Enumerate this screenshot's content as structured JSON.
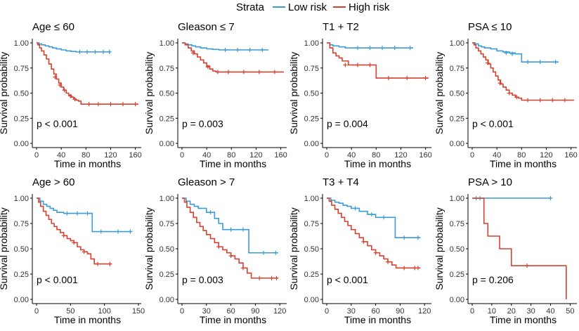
{
  "legend": {
    "title": "Strata",
    "items": [
      {
        "label": "Low risk",
        "color": "#3a9bd6"
      },
      {
        "label": "High risk",
        "color": "#d9402f"
      }
    ]
  },
  "chart_data": [
    {
      "type": "line",
      "title": "Age ≤ 60",
      "xlabel": "Time in months",
      "ylabel": "Survival probability",
      "xlim": [
        0,
        165
      ],
      "ylim": [
        0,
        1
      ],
      "xticks": [
        0,
        40,
        80,
        120,
        160
      ],
      "yticks": [
        0,
        0.25,
        0.5,
        0.75,
        1.0
      ],
      "pvalue": "p < 0.001",
      "series": [
        {
          "name": "Low risk",
          "x": [
            0,
            4,
            8,
            14,
            20,
            26,
            32,
            40,
            48,
            56,
            64,
            120
          ],
          "y": [
            1.0,
            0.99,
            0.98,
            0.97,
            0.96,
            0.95,
            0.94,
            0.93,
            0.92,
            0.915,
            0.91,
            0.91
          ],
          "censors": [
            [
              70,
              0.91
            ],
            [
              82,
              0.91
            ],
            [
              95,
              0.91
            ],
            [
              108,
              0.91
            ],
            [
              118,
              0.91
            ]
          ]
        },
        {
          "name": "High risk",
          "x": [
            0,
            2,
            5,
            8,
            12,
            16,
            20,
            24,
            28,
            32,
            36,
            40,
            44,
            48,
            52,
            56,
            60,
            64,
            68,
            72,
            165
          ],
          "y": [
            1.0,
            0.98,
            0.95,
            0.92,
            0.88,
            0.84,
            0.79,
            0.74,
            0.69,
            0.64,
            0.6,
            0.56,
            0.53,
            0.5,
            0.48,
            0.46,
            0.44,
            0.43,
            0.42,
            0.39,
            0.39
          ],
          "censors": [
            [
              30,
              0.66
            ],
            [
              38,
              0.58
            ],
            [
              45,
              0.53
            ],
            [
              55,
              0.47
            ],
            [
              62,
              0.44
            ],
            [
              85,
              0.39
            ],
            [
              100,
              0.39
            ],
            [
              120,
              0.39
            ],
            [
              140,
              0.39
            ],
            [
              160,
              0.39
            ]
          ]
        }
      ]
    },
    {
      "type": "line",
      "title": "Gleason ≤ 7",
      "xlabel": "Time in months",
      "ylabel": "Survival probability",
      "xlim": [
        0,
        165
      ],
      "ylim": [
        0,
        1
      ],
      "xticks": [
        0,
        40,
        80,
        120,
        160
      ],
      "yticks": [
        0,
        0.25,
        0.5,
        0.75,
        1.0
      ],
      "pvalue": "p = 0.003",
      "series": [
        {
          "name": "Low risk",
          "x": [
            0,
            5,
            10,
            16,
            22,
            30,
            40,
            50,
            60,
            140
          ],
          "y": [
            1.0,
            0.99,
            0.98,
            0.97,
            0.96,
            0.95,
            0.94,
            0.935,
            0.93,
            0.93
          ],
          "censors": [
            [
              70,
              0.93
            ],
            [
              90,
              0.93
            ],
            [
              110,
              0.93
            ],
            [
              130,
              0.93
            ]
          ]
        },
        {
          "name": "High risk",
          "x": [
            0,
            5,
            10,
            15,
            20,
            25,
            30,
            35,
            40,
            45,
            50,
            55,
            60,
            165
          ],
          "y": [
            1.0,
            0.98,
            0.95,
            0.92,
            0.89,
            0.86,
            0.83,
            0.8,
            0.77,
            0.74,
            0.72,
            0.71,
            0.71,
            0.71
          ],
          "censors": [
            [
              18,
              0.9
            ],
            [
              42,
              0.76
            ],
            [
              58,
              0.71
            ],
            [
              75,
              0.71
            ],
            [
              100,
              0.71
            ],
            [
              125,
              0.71
            ],
            [
              150,
              0.71
            ]
          ]
        }
      ]
    },
    {
      "type": "line",
      "title": "T1 + T2",
      "xlabel": "Time in months",
      "ylabel": "Survival probability",
      "xlim": [
        0,
        165
      ],
      "ylim": [
        0,
        1
      ],
      "xticks": [
        0,
        40,
        80,
        120,
        160
      ],
      "yticks": [
        0,
        0.25,
        0.5,
        0.75,
        1.0
      ],
      "pvalue": "p = 0.004",
      "series": [
        {
          "name": "Low risk",
          "x": [
            0,
            5,
            10,
            20,
            30,
            40,
            140
          ],
          "y": [
            1.0,
            0.98,
            0.97,
            0.96,
            0.95,
            0.95,
            0.95
          ],
          "censors": [
            [
              50,
              0.95
            ],
            [
              70,
              0.95
            ],
            [
              90,
              0.95
            ],
            [
              110,
              0.95
            ],
            [
              135,
              0.95
            ]
          ]
        },
        {
          "name": "High risk",
          "x": [
            0,
            5,
            10,
            15,
            20,
            25,
            35,
            80,
            165
          ],
          "y": [
            1.0,
            0.95,
            0.9,
            0.87,
            0.85,
            0.82,
            0.78,
            0.65,
            0.65
          ],
          "censors": [
            [
              30,
              0.78
            ],
            [
              50,
              0.78
            ],
            [
              70,
              0.78
            ],
            [
              100,
              0.65
            ],
            [
              130,
              0.65
            ],
            [
              160,
              0.65
            ]
          ]
        }
      ]
    },
    {
      "type": "line",
      "title": "PSA ≤ 10",
      "xlabel": "Time in months",
      "ylabel": "Survival probability",
      "xlim": [
        0,
        165
      ],
      "ylim": [
        0,
        1
      ],
      "xticks": [
        0,
        40,
        80,
        120,
        160
      ],
      "yticks": [
        0,
        0.25,
        0.5,
        0.75,
        1.0
      ],
      "pvalue": "p < 0.001",
      "series": [
        {
          "name": "Low risk",
          "x": [
            0,
            5,
            10,
            15,
            20,
            30,
            40,
            50,
            60,
            70,
            80,
            140
          ],
          "y": [
            1.0,
            0.99,
            0.97,
            0.96,
            0.95,
            0.94,
            0.92,
            0.91,
            0.9,
            0.89,
            0.81,
            0.81
          ],
          "censors": [
            [
              55,
              0.9
            ],
            [
              65,
              0.89
            ],
            [
              90,
              0.81
            ],
            [
              110,
              0.81
            ],
            [
              135,
              0.81
            ]
          ]
        },
        {
          "name": "High risk",
          "x": [
            0,
            3,
            6,
            10,
            14,
            18,
            22,
            26,
            30,
            34,
            38,
            42,
            46,
            50,
            55,
            60,
            65,
            70,
            75,
            80,
            165
          ],
          "y": [
            1.0,
            0.98,
            0.95,
            0.92,
            0.89,
            0.86,
            0.83,
            0.79,
            0.75,
            0.71,
            0.67,
            0.63,
            0.59,
            0.56,
            0.53,
            0.5,
            0.48,
            0.46,
            0.45,
            0.43,
            0.43
          ],
          "censors": [
            [
              25,
              0.8
            ],
            [
              45,
              0.6
            ],
            [
              60,
              0.5
            ],
            [
              72,
              0.46
            ],
            [
              90,
              0.43
            ],
            [
              110,
              0.43
            ],
            [
              130,
              0.43
            ],
            [
              150,
              0.43
            ]
          ]
        }
      ]
    },
    {
      "type": "line",
      "title": "Age > 60",
      "xlabel": "Time in months",
      "ylabel": "Survival probability",
      "xlim": [
        0,
        150
      ],
      "ylim": [
        0,
        1
      ],
      "xticks": [
        0,
        50,
        100,
        150
      ],
      "yticks": [
        0,
        0.25,
        0.5,
        0.75,
        1.0
      ],
      "pvalue": "p < 0.001",
      "series": [
        {
          "name": "Low risk",
          "x": [
            0,
            5,
            10,
            15,
            20,
            25,
            30,
            40,
            50,
            82,
            140
          ],
          "y": [
            1.0,
            0.97,
            0.94,
            0.92,
            0.9,
            0.88,
            0.86,
            0.85,
            0.85,
            0.67,
            0.67
          ],
          "censors": [
            [
              45,
              0.85
            ],
            [
              60,
              0.85
            ],
            [
              75,
              0.85
            ],
            [
              95,
              0.67
            ],
            [
              120,
              0.67
            ],
            [
              138,
              0.67
            ]
          ]
        },
        {
          "name": "High risk",
          "x": [
            0,
            3,
            6,
            10,
            14,
            18,
            22,
            26,
            30,
            35,
            40,
            45,
            50,
            55,
            60,
            65,
            70,
            75,
            80,
            85,
            110
          ],
          "y": [
            1.0,
            0.96,
            0.92,
            0.87,
            0.83,
            0.79,
            0.75,
            0.72,
            0.69,
            0.66,
            0.63,
            0.6,
            0.58,
            0.56,
            0.52,
            0.49,
            0.47,
            0.45,
            0.4,
            0.35,
            0.35
          ],
          "censors": [
            [
              40,
              0.63
            ],
            [
              55,
              0.56
            ],
            [
              70,
              0.47
            ],
            [
              90,
              0.35
            ],
            [
              108,
              0.35
            ]
          ]
        }
      ]
    },
    {
      "type": "line",
      "title": "Gleason > 7",
      "xlabel": "Time in months",
      "ylabel": "Survival probability",
      "xlim": [
        0,
        125
      ],
      "ylim": [
        0,
        1
      ],
      "xticks": [
        0,
        30,
        60,
        90,
        120
      ],
      "yticks": [
        0,
        0.25,
        0.5,
        0.75,
        1.0
      ],
      "pvalue": "p = 0.003",
      "series": [
        {
          "name": "Low risk",
          "x": [
            0,
            5,
            10,
            15,
            20,
            30,
            40,
            45,
            50,
            82,
            118
          ],
          "y": [
            1.0,
            0.97,
            0.94,
            0.92,
            0.9,
            0.86,
            0.8,
            0.75,
            0.69,
            0.46,
            0.46
          ],
          "censors": [
            [
              35,
              0.86
            ],
            [
              60,
              0.69
            ],
            [
              75,
              0.69
            ],
            [
              100,
              0.46
            ],
            [
              115,
              0.46
            ]
          ]
        },
        {
          "name": "High risk",
          "x": [
            0,
            3,
            6,
            10,
            14,
            18,
            22,
            26,
            30,
            35,
            40,
            45,
            50,
            55,
            60,
            65,
            70,
            75,
            80,
            85,
            118
          ],
          "y": [
            1.0,
            0.96,
            0.91,
            0.86,
            0.81,
            0.76,
            0.72,
            0.68,
            0.64,
            0.6,
            0.56,
            0.52,
            0.49,
            0.46,
            0.43,
            0.4,
            0.36,
            0.31,
            0.26,
            0.21,
            0.21
          ],
          "censors": [
            [
              45,
              0.52
            ],
            [
              60,
              0.43
            ],
            [
              75,
              0.31
            ],
            [
              95,
              0.21
            ],
            [
              110,
              0.21
            ],
            [
              116,
              0.21
            ]
          ]
        }
      ]
    },
    {
      "type": "line",
      "title": "T3 + T4",
      "xlabel": "Time in months",
      "ylabel": "Survival probability",
      "xlim": [
        0,
        125
      ],
      "ylim": [
        0,
        1
      ],
      "xticks": [
        0,
        30,
        60,
        90,
        120
      ],
      "yticks": [
        0,
        0.25,
        0.5,
        0.75,
        1.0
      ],
      "pvalue": "p < 0.001",
      "series": [
        {
          "name": "Low risk",
          "x": [
            0,
            5,
            10,
            15,
            20,
            25,
            30,
            40,
            50,
            60,
            84,
            115
          ],
          "y": [
            1.0,
            0.98,
            0.96,
            0.95,
            0.93,
            0.92,
            0.9,
            0.87,
            0.84,
            0.81,
            0.61,
            0.61
          ],
          "censors": [
            [
              35,
              0.9
            ],
            [
              55,
              0.84
            ],
            [
              70,
              0.81
            ],
            [
              95,
              0.61
            ],
            [
              112,
              0.61
            ]
          ]
        },
        {
          "name": "High risk",
          "x": [
            0,
            3,
            6,
            10,
            14,
            18,
            22,
            26,
            30,
            35,
            40,
            45,
            50,
            55,
            60,
            65,
            70,
            75,
            80,
            85,
            115
          ],
          "y": [
            1.0,
            0.97,
            0.93,
            0.89,
            0.85,
            0.81,
            0.77,
            0.73,
            0.69,
            0.65,
            0.61,
            0.57,
            0.53,
            0.49,
            0.46,
            0.43,
            0.4,
            0.37,
            0.34,
            0.31,
            0.31
          ],
          "censors": [
            [
              45,
              0.57
            ],
            [
              60,
              0.46
            ],
            [
              75,
              0.37
            ],
            [
              95,
              0.31
            ],
            [
              108,
              0.31
            ],
            [
              112,
              0.31
            ]
          ]
        }
      ]
    },
    {
      "type": "line",
      "title": "PSA > 10",
      "xlabel": "Time in months",
      "ylabel": "Survival probability",
      "xlim": [
        0,
        52
      ],
      "ylim": [
        0,
        1
      ],
      "xticks": [
        0,
        10,
        20,
        30,
        40,
        50
      ],
      "yticks": [
        0,
        0.25,
        0.5,
        0.75,
        1.0
      ],
      "pvalue": "p = 0.206",
      "series": [
        {
          "name": "Low risk",
          "x": [
            0,
            40
          ],
          "y": [
            1.0,
            1.0
          ],
          "censors": [
            [
              2,
              1.0
            ],
            [
              4,
              1.0
            ],
            [
              40,
              1.0
            ]
          ]
        },
        {
          "name": "High risk",
          "x": [
            0,
            5,
            6,
            8,
            14,
            20,
            48,
            48
          ],
          "y": [
            1.0,
            1.0,
            0.75,
            0.625,
            0.5,
            0.333,
            0.333,
            0.0
          ],
          "censors": [
            [
              28,
              0.333
            ]
          ]
        }
      ]
    }
  ]
}
